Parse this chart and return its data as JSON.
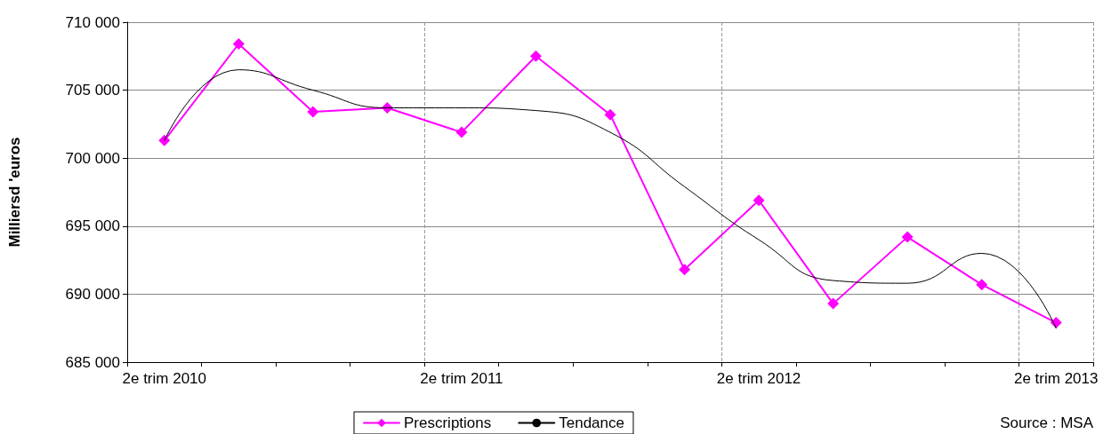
{
  "chart_data": {
    "type": "line",
    "ylabel": "Milliersd 'euros",
    "categories": [
      "2e trim 2010",
      null,
      null,
      null,
      "2e trim 2011",
      null,
      null,
      null,
      "2e trim 2012",
      null,
      null,
      null,
      "2e trim 2013"
    ],
    "ylim": [
      685000,
      710000
    ],
    "yticks": [
      {
        "value": 685000,
        "label": "685 000"
      },
      {
        "value": 690000,
        "label": "690 000"
      },
      {
        "value": 695000,
        "label": "695 000"
      },
      {
        "value": 700000,
        "label": "700 000"
      },
      {
        "value": 705000,
        "label": "705 000"
      },
      {
        "value": 710000,
        "label": "710 000"
      }
    ],
    "grid": true,
    "legend": "bottom",
    "series": [
      {
        "name": "Prescriptions",
        "color": "#ff00ff",
        "marker": "diamond",
        "values": [
          701300,
          708400,
          703400,
          703700,
          701900,
          707500,
          703200,
          691800,
          696900,
          689300,
          694200,
          690700,
          687900
        ]
      },
      {
        "name": "Tendance",
        "color": "#000000",
        "marker": "none",
        "values": [
          701300,
          706500,
          705000,
          703700,
          703700,
          703500,
          701900,
          697900,
          694000,
          691000,
          690800,
          693000,
          687500
        ]
      }
    ],
    "annotations": [
      "Source : MSA"
    ]
  }
}
